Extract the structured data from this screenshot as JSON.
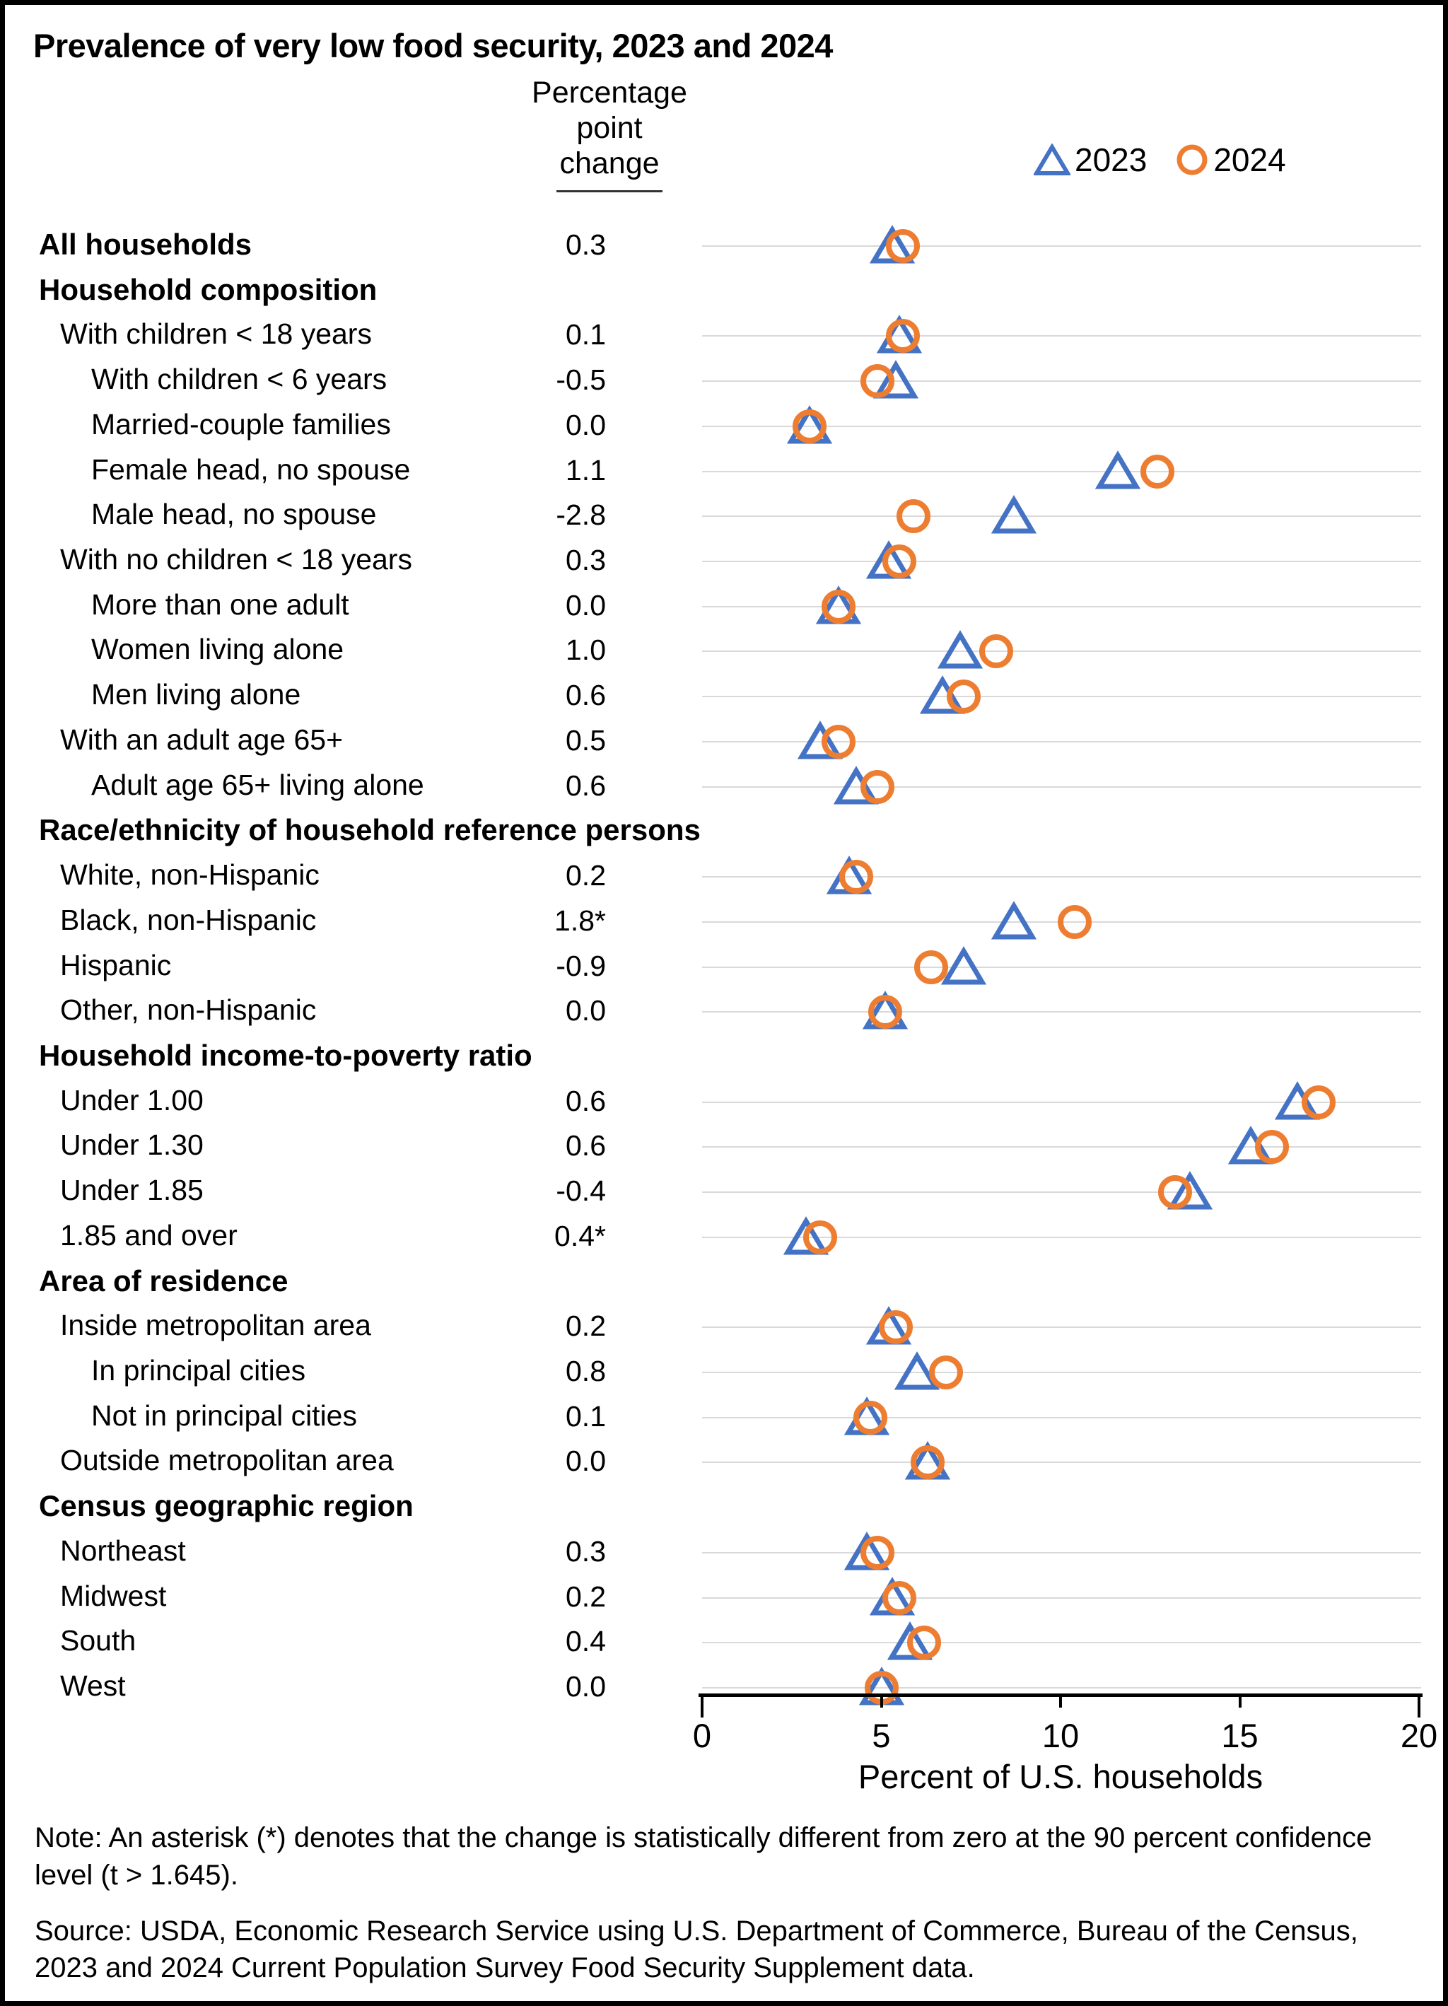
{
  "title": "Prevalence of very low food security, 2023 and 2024",
  "column_header": {
    "line1": "Percentage",
    "line2": "point",
    "line3": "change"
  },
  "legend": {
    "item_2023": "2023",
    "item_2024": "2024"
  },
  "note": "Note: An asterisk (*) denotes that the change is statistically different from zero at the 90 percent confidence level (t > 1.645).",
  "source": "Source: USDA, Economic Research Service using U.S. Department of Commerce, Bureau of the Census, 2023 and 2024 Current Population Survey Food Security Supplement data.",
  "colors": {
    "marker_2023": "#4472C4",
    "marker_2024": "#ED7D31",
    "gridline": "#d9d9d9",
    "axis": "#000000"
  },
  "chart_data": {
    "type": "scatter",
    "title": "Prevalence of very low food security, 2023 and 2024",
    "xlabel": "Percent of U.S. households",
    "xlim": [
      0,
      20
    ],
    "x_ticks": [
      0,
      5,
      10,
      15,
      20
    ],
    "grid": true,
    "legend_position": "top-right",
    "series_names": [
      "2023",
      "2024"
    ],
    "marker_2023": "open-triangle",
    "marker_2024": "open-circle",
    "rows": [
      {
        "label": "All households",
        "indent": 0,
        "bold": true,
        "header": false,
        "change": "0.3",
        "v2023": 5.3,
        "v2024": 5.6
      },
      {
        "label": "Household composition",
        "indent": 0,
        "bold": true,
        "header": true,
        "change": "",
        "v2023": null,
        "v2024": null
      },
      {
        "label": "With children < 18 years",
        "indent": 1,
        "bold": false,
        "header": false,
        "change": "0.1",
        "v2023": 5.5,
        "v2024": 5.6
      },
      {
        "label": "With children < 6 years",
        "indent": 2,
        "bold": false,
        "header": false,
        "change": "-0.5",
        "v2023": 5.4,
        "v2024": 4.9
      },
      {
        "label": "Married-couple families",
        "indent": 2,
        "bold": false,
        "header": false,
        "change": "0.0",
        "v2023": 3.0,
        "v2024": 3.0
      },
      {
        "label": "Female head, no spouse",
        "indent": 2,
        "bold": false,
        "header": false,
        "change": "1.1",
        "v2023": 11.6,
        "v2024": 12.7
      },
      {
        "label": "Male head, no spouse",
        "indent": 2,
        "bold": false,
        "header": false,
        "change": "-2.8",
        "v2023": 8.7,
        "v2024": 5.9
      },
      {
        "label": "With no children < 18 years",
        "indent": 1,
        "bold": false,
        "header": false,
        "change": "0.3",
        "v2023": 5.2,
        "v2024": 5.5
      },
      {
        "label": "More than one adult",
        "indent": 2,
        "bold": false,
        "header": false,
        "change": "0.0",
        "v2023": 3.8,
        "v2024": 3.8
      },
      {
        "label": "Women living alone",
        "indent": 2,
        "bold": false,
        "header": false,
        "change": "1.0",
        "v2023": 7.2,
        "v2024": 8.2
      },
      {
        "label": "Men living alone",
        "indent": 2,
        "bold": false,
        "header": false,
        "change": "0.6",
        "v2023": 6.7,
        "v2024": 7.3
      },
      {
        "label": "With an adult age 65+",
        "indent": 1,
        "bold": false,
        "header": false,
        "change": "0.5",
        "v2023": 3.3,
        "v2024": 3.8
      },
      {
        "label": "Adult age 65+ living alone",
        "indent": 2,
        "bold": false,
        "header": false,
        "change": "0.6",
        "v2023": 4.3,
        "v2024": 4.9
      },
      {
        "label": "Race/ethnicity of household reference persons",
        "indent": 0,
        "bold": true,
        "header": true,
        "change": "",
        "v2023": null,
        "v2024": null
      },
      {
        "label": "White, non-Hispanic",
        "indent": 1,
        "bold": false,
        "header": false,
        "change": "0.2",
        "v2023": 4.1,
        "v2024": 4.3
      },
      {
        "label": "Black, non-Hispanic",
        "indent": 1,
        "bold": false,
        "header": false,
        "change": "1.8*",
        "v2023": 8.7,
        "v2024": 10.4
      },
      {
        "label": "Hispanic",
        "indent": 1,
        "bold": false,
        "header": false,
        "change": "-0.9",
        "v2023": 7.3,
        "v2024": 6.4
      },
      {
        "label": "Other, non-Hispanic",
        "indent": 1,
        "bold": false,
        "header": false,
        "change": "0.0",
        "v2023": 5.1,
        "v2024": 5.1
      },
      {
        "label": "Household income-to-poverty ratio",
        "indent": 0,
        "bold": true,
        "header": true,
        "change": "",
        "v2023": null,
        "v2024": null
      },
      {
        "label": "Under 1.00",
        "indent": 1,
        "bold": false,
        "header": false,
        "change": "0.6",
        "v2023": 16.6,
        "v2024": 17.2
      },
      {
        "label": "Under 1.30",
        "indent": 1,
        "bold": false,
        "header": false,
        "change": "0.6",
        "v2023": 15.3,
        "v2024": 15.9
      },
      {
        "label": "Under 1.85",
        "indent": 1,
        "bold": false,
        "header": false,
        "change": "-0.4",
        "v2023": 13.6,
        "v2024": 13.2
      },
      {
        "label": "1.85 and over",
        "indent": 1,
        "bold": false,
        "header": false,
        "change": "0.4*",
        "v2023": 2.9,
        "v2024": 3.3
      },
      {
        "label": "Area of residence",
        "indent": 0,
        "bold": true,
        "header": true,
        "change": "",
        "v2023": null,
        "v2024": null
      },
      {
        "label": "Inside metropolitan area",
        "indent": 1,
        "bold": false,
        "header": false,
        "change": "0.2",
        "v2023": 5.2,
        "v2024": 5.4
      },
      {
        "label": "In principal cities",
        "indent": 2,
        "bold": false,
        "header": false,
        "change": "0.8",
        "v2023": 6.0,
        "v2024": 6.8
      },
      {
        "label": "Not in principal cities",
        "indent": 2,
        "bold": false,
        "header": false,
        "change": "0.1",
        "v2023": 4.6,
        "v2024": 4.7
      },
      {
        "label": "Outside metropolitan area",
        "indent": 1,
        "bold": false,
        "header": false,
        "change": "0.0",
        "v2023": 6.3,
        "v2024": 6.3
      },
      {
        "label": "Census geographic region",
        "indent": 0,
        "bold": true,
        "header": true,
        "change": "",
        "v2023": null,
        "v2024": null
      },
      {
        "label": "Northeast",
        "indent": 1,
        "bold": false,
        "header": false,
        "change": "0.3",
        "v2023": 4.6,
        "v2024": 4.9
      },
      {
        "label": "Midwest",
        "indent": 1,
        "bold": false,
        "header": false,
        "change": "0.2",
        "v2023": 5.3,
        "v2024": 5.5
      },
      {
        "label": "South",
        "indent": 1,
        "bold": false,
        "header": false,
        "change": "0.4",
        "v2023": 5.8,
        "v2024": 6.2
      },
      {
        "label": "West",
        "indent": 1,
        "bold": false,
        "header": false,
        "change": "0.0",
        "v2023": 5.0,
        "v2024": 5.0
      }
    ]
  }
}
